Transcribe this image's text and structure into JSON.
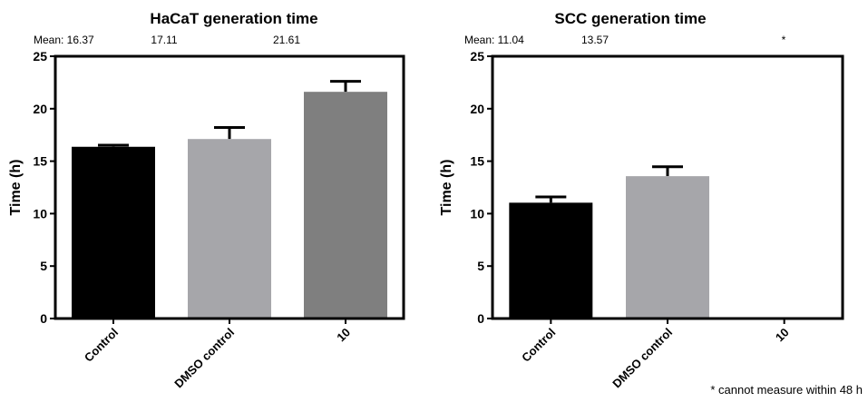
{
  "footnote": "* cannot measure within 48 h",
  "chart_data": [
    {
      "type": "bar",
      "title": "HaCaT generation time",
      "ylabel": "Time (h)",
      "xlabel": "",
      "categories": [
        "Control",
        "DMSO control",
        "10"
      ],
      "values": [
        16.37,
        17.11,
        21.61
      ],
      "errors": [
        0.15,
        1.1,
        1.0
      ],
      "colors": [
        "#000000",
        "#a6a6aa",
        "#7f7f7f"
      ],
      "ylim": [
        0,
        25
      ],
      "yticks": [
        0,
        5,
        10,
        15,
        20,
        25
      ],
      "mean_labels": [
        "Mean: 16.37",
        "17.11",
        "21.61"
      ]
    },
    {
      "type": "bar",
      "title": "SCC generation time",
      "ylabel": "Time (h)",
      "xlabel": "",
      "categories": [
        "Control",
        "DMSO control",
        "10"
      ],
      "values": [
        11.04,
        13.57,
        null
      ],
      "errors": [
        0.55,
        0.9,
        null
      ],
      "colors": [
        "#000000",
        "#a6a6aa",
        "#7f7f7f"
      ],
      "ylim": [
        0,
        25
      ],
      "yticks": [
        0,
        5,
        10,
        15,
        20,
        25
      ],
      "mean_labels": [
        "Mean: 11.04",
        "13.57",
        "*"
      ]
    }
  ]
}
